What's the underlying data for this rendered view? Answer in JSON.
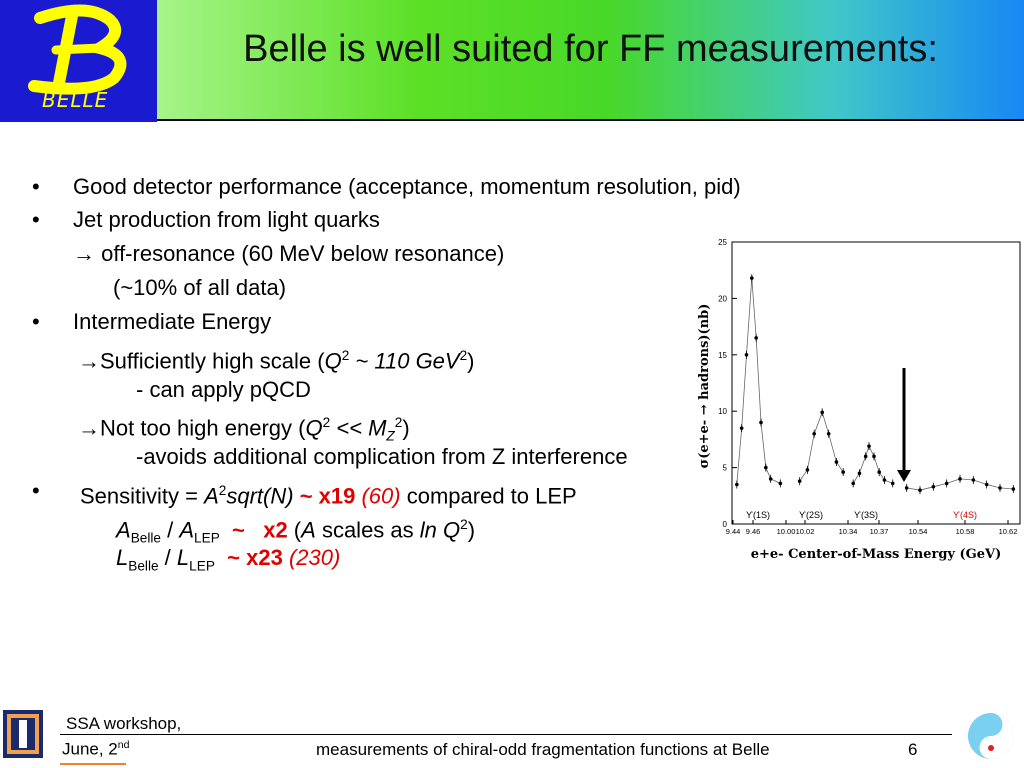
{
  "slide": {
    "title": "Belle is well suited for FF measurements:",
    "logo_text": "BELLE"
  },
  "bullets": {
    "b1": "Good detector performance (acceptance, momentum resolution, pid)",
    "b2": "Jet production from light quarks",
    "b2_sub1": " off-resonance (60 MeV below resonance)",
    "b2_sub2": "(~10% of all data)",
    "b3": "Intermediate Energy",
    "b3_sub1_a": "Sufficiently high scale (",
    "b3_sub1_q": "Q",
    "b3_sub1_sup": "2",
    "b3_sub1_b": " ~ 110 GeV",
    "b3_sub1_sup2": "2",
    "b3_sub1_c": ")",
    "b3_sub2": "- can apply pQCD",
    "b3_sub3_a": "Not too high energy (",
    "b3_sub3_q": "Q",
    "b3_sub3_sup": "2",
    "b3_sub3_b": " << M",
    "b3_sub3_subz": "Z",
    "b3_sub3_sup2": "2",
    "b3_sub3_c": ")",
    "b3_sub4": "-avoids additional complication from Z interference",
    "b4_a": "Sensitivity = ",
    "b4_A": "A",
    "b4_sup": "2",
    "b4_sqrt": "sqrt(N)",
    "b4_red": " ~ x19 ",
    "b4_paren": "(60)",
    "b4_rest": " compared to LEP",
    "b4_s1_A1": "A",
    "b4_s1_sub1": "Belle",
    "b4_s1_slash": " / ",
    "b4_s1_A2": "A",
    "b4_s1_sub2": "LEP",
    "b4_s1_red": "  ~   x2",
    "b4_s1_rest_a": " (",
    "b4_s1_rest_A": "A",
    "b4_s1_rest_b": " scales as ",
    "b4_s1_rest_ln": "ln Q",
    "b4_s1_rest_sup": "2",
    "b4_s1_rest_c": ")",
    "b4_s2_L1": "L",
    "b4_s2_sub1": "Belle",
    "b4_s2_slash": " / ",
    "b4_s2_L2": "L",
    "b4_s2_sub2": "LEP",
    "b4_s2_red": "  ~ x23 ",
    "b4_s2_paren": "(230)"
  },
  "chart_data": {
    "type": "scatter",
    "xlabel": "e+e- Center-of-Mass Energy (GeV)",
    "ylabel": "σ(e+e- → hadrons)(nb)",
    "ylim": [
      0,
      25
    ],
    "yticks": [
      "0",
      "5",
      "10",
      "15",
      "20",
      "25"
    ],
    "xticks": [
      "9.44",
      "9.46",
      "10.00",
      "10.02",
      "10.34",
      "10.37",
      "10.54",
      "10.58",
      "10.62"
    ],
    "peaks": [
      "ϒ(1S)",
      "ϒ(2S)",
      "ϒ(3S)",
      "ϒ(4S)"
    ],
    "points": [
      {
        "x": 9.445,
        "y": 3.5
      },
      {
        "x": 9.45,
        "y": 8.5
      },
      {
        "x": 9.455,
        "y": 15.0
      },
      {
        "x": 9.4605,
        "y": 21.8
      },
      {
        "x": 9.465,
        "y": 16.5
      },
      {
        "x": 9.47,
        "y": 9.0
      },
      {
        "x": 9.475,
        "y": 5.0
      },
      {
        "x": 9.48,
        "y": 4.0
      },
      {
        "x": 9.49,
        "y": 3.6
      },
      {
        "x": 10.0,
        "y": 3.8
      },
      {
        "x": 10.008,
        "y": 4.8
      },
      {
        "x": 10.015,
        "y": 8.0
      },
      {
        "x": 10.0233,
        "y": 9.9
      },
      {
        "x": 10.03,
        "y": 8.0
      },
      {
        "x": 10.038,
        "y": 5.5
      },
      {
        "x": 10.045,
        "y": 4.6
      },
      {
        "x": 10.34,
        "y": 3.6
      },
      {
        "x": 10.346,
        "y": 4.5
      },
      {
        "x": 10.352,
        "y": 6.0
      },
      {
        "x": 10.3552,
        "y": 6.9
      },
      {
        "x": 10.36,
        "y": 6.0
      },
      {
        "x": 10.365,
        "y": 4.6
      },
      {
        "x": 10.37,
        "y": 3.9
      },
      {
        "x": 10.378,
        "y": 3.6
      },
      {
        "x": 10.54,
        "y": 3.2
      },
      {
        "x": 10.55,
        "y": 3.0
      },
      {
        "x": 10.56,
        "y": 3.3
      },
      {
        "x": 10.57,
        "y": 3.6
      },
      {
        "x": 10.58,
        "y": 4.0
      },
      {
        "x": 10.59,
        "y": 3.9
      },
      {
        "x": 10.6,
        "y": 3.5
      },
      {
        "x": 10.61,
        "y": 3.2
      },
      {
        "x": 10.62,
        "y": 3.1
      }
    ]
  },
  "footer": {
    "workshop": "SSA workshop,",
    "date": "June, 2",
    "date_sup": "nd",
    "subtitle": "measurements of chiral-odd fragmentation functions at Belle",
    "page": "6"
  },
  "colors": {
    "accent_red": "#e00000",
    "logo_blue": "#1a1ad0",
    "logo_yellow": "#ffff00"
  }
}
